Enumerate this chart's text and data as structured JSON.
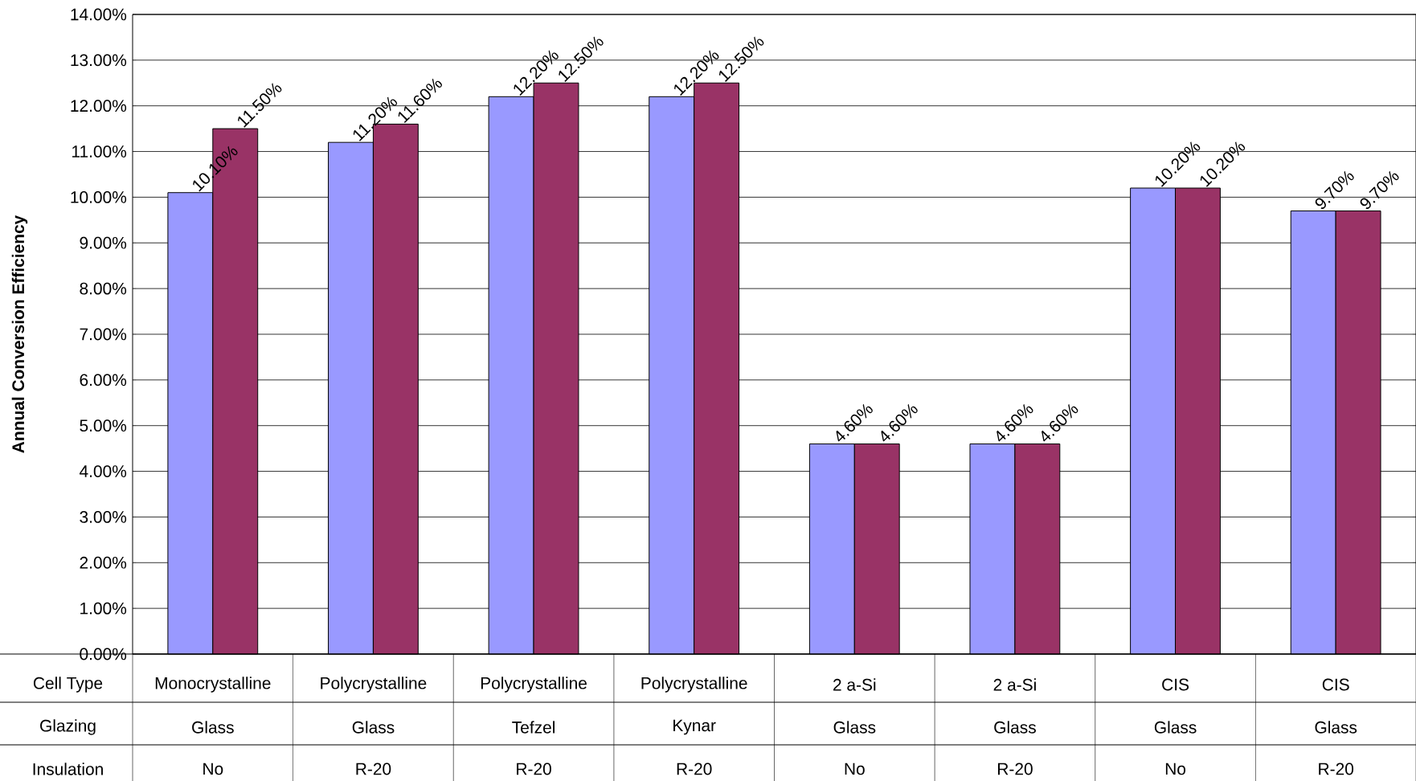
{
  "chart_data": {
    "type": "bar",
    "ylabel": "Annual Conversion Efficiency",
    "categories": [
      "Monocrystalline",
      "Polycrystalline",
      "Polycrystalline",
      "Polycrystalline",
      "2 a-Si",
      "2 a-Si",
      "CIS",
      "CIS"
    ],
    "annotations": [
      "Cell Type",
      "Glazing",
      "Insulation",
      "Glass",
      "Glass",
      "Tefzel",
      "Kynar",
      "Glass",
      "Glass",
      "Glass",
      "Glass",
      "No",
      "R-20",
      "R-20",
      "R-20",
      "No",
      "R-20",
      "No",
      "R-20"
    ],
    "series": [
      {
        "color": "#9999ff",
        "values": [
          10.1,
          11.2,
          12.2,
          12.2,
          4.6,
          4.6,
          10.2,
          9.7
        ],
        "value_labels": [
          "10.10%",
          "11.20%",
          "12.20%",
          "12.20%",
          "4.60%",
          "4.60%",
          "10.20%",
          "9.70%"
        ]
      },
      {
        "color": "#993366",
        "values": [
          11.5,
          11.6,
          12.5,
          12.5,
          4.6,
          4.6,
          10.2,
          9.7
        ],
        "value_labels": [
          "11.50%",
          "11.60%",
          "12.50%",
          "12.50%",
          "4.60%",
          "4.60%",
          "10.20%",
          "9.70%"
        ]
      }
    ],
    "ylim": [
      0,
      14
    ],
    "yticks": [
      {
        "value": 0,
        "label": "0.00%"
      },
      {
        "value": 1,
        "label": "1.00%"
      },
      {
        "value": 2,
        "label": "2.00%"
      },
      {
        "value": 3,
        "label": "3.00%"
      },
      {
        "value": 4,
        "label": "4.00%"
      },
      {
        "value": 5,
        "label": "5.00%"
      },
      {
        "value": 6,
        "label": "6.00%"
      },
      {
        "value": 7,
        "label": "7.00%"
      },
      {
        "value": 8,
        "label": "8.00%"
      },
      {
        "value": 9,
        "label": "9.00%"
      },
      {
        "value": 10,
        "label": "10.00%"
      },
      {
        "value": 11,
        "label": "11.00%"
      },
      {
        "value": 12,
        "label": "12.00%"
      },
      {
        "value": 13,
        "label": "13.00%"
      },
      {
        "value": 14,
        "label": "14.00%"
      }
    ],
    "grid": "y"
  }
}
